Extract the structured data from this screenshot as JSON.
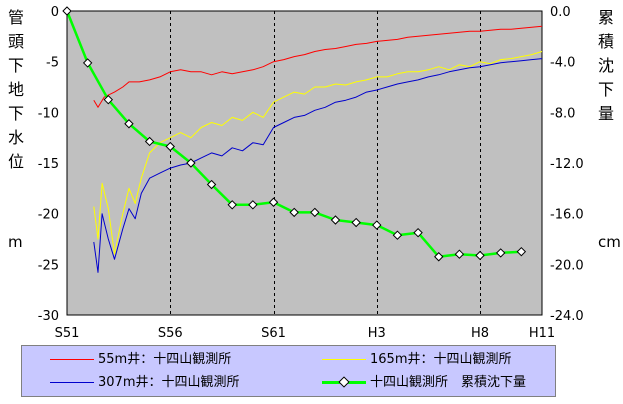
{
  "chart_data": {
    "type": "line",
    "y_left_label": "管頭下地下水位",
    "y_left_unit": "m",
    "y_right_label": "累積沈下量",
    "y_right_unit": "cm",
    "y_left_range": [
      -30,
      0
    ],
    "y_right_range": [
      -24,
      0
    ],
    "y_left_ticks": [
      "0",
      "-5",
      "-10",
      "-15",
      "-20",
      "-25",
      "-30"
    ],
    "y_right_ticks": [
      "0.0",
      "-4.0",
      "-8.0",
      "-12.0",
      "-16.0",
      "-20.0",
      "-24.0"
    ],
    "x_range": [
      1976,
      1999
    ],
    "x_ticks": [
      {
        "label": "S51",
        "year": 1976
      },
      {
        "label": "S56",
        "year": 1981
      },
      {
        "label": "S61",
        "year": 1986
      },
      {
        "label": "H3",
        "year": 1991
      },
      {
        "label": "H8",
        "year": 1996
      },
      {
        "label": "H11",
        "year": 1999
      }
    ],
    "grid": "vertical dashed at S56, S61, H3, H8",
    "series": [
      {
        "name": "55m井：十四山観測所",
        "axis": "left",
        "color": "#ff0000",
        "points": [
          [
            1977.3,
            -8.8
          ],
          [
            1977.5,
            -9.5
          ],
          [
            1977.8,
            -8.5
          ],
          [
            1978.0,
            -8.3
          ],
          [
            1978.3,
            -8.0
          ],
          [
            1978.7,
            -7.5
          ],
          [
            1979.0,
            -7.0
          ],
          [
            1979.5,
            -7.0
          ],
          [
            1980.0,
            -6.8
          ],
          [
            1980.5,
            -6.5
          ],
          [
            1981.0,
            -6.0
          ],
          [
            1981.5,
            -5.8
          ],
          [
            1982.0,
            -6.0
          ],
          [
            1982.5,
            -6.0
          ],
          [
            1983.0,
            -6.3
          ],
          [
            1983.5,
            -6.0
          ],
          [
            1984.0,
            -6.2
          ],
          [
            1984.5,
            -6.0
          ],
          [
            1985.0,
            -5.8
          ],
          [
            1985.5,
            -5.5
          ],
          [
            1986.0,
            -5.0
          ],
          [
            1986.5,
            -4.8
          ],
          [
            1987.0,
            -4.5
          ],
          [
            1987.5,
            -4.3
          ],
          [
            1988.0,
            -4.0
          ],
          [
            1988.5,
            -3.8
          ],
          [
            1989.0,
            -3.7
          ],
          [
            1989.5,
            -3.5
          ],
          [
            1990.0,
            -3.3
          ],
          [
            1990.5,
            -3.2
          ],
          [
            1991.0,
            -3.0
          ],
          [
            1991.5,
            -2.9
          ],
          [
            1992.0,
            -2.8
          ],
          [
            1992.5,
            -2.6
          ],
          [
            1993.0,
            -2.5
          ],
          [
            1993.5,
            -2.4
          ],
          [
            1994.0,
            -2.3
          ],
          [
            1994.5,
            -2.2
          ],
          [
            1995.0,
            -2.1
          ],
          [
            1995.5,
            -2.0
          ],
          [
            1996.0,
            -2.0
          ],
          [
            1996.5,
            -1.9
          ],
          [
            1997.0,
            -1.8
          ],
          [
            1997.5,
            -1.8
          ],
          [
            1998.0,
            -1.7
          ],
          [
            1998.5,
            -1.6
          ],
          [
            1999.0,
            -1.5
          ]
        ]
      },
      {
        "name": "165m井：十四山観測所",
        "axis": "left",
        "color": "#ffff00",
        "points": [
          [
            1977.3,
            -19.3
          ],
          [
            1977.5,
            -22.5
          ],
          [
            1977.7,
            -17.0
          ],
          [
            1978.0,
            -19.5
          ],
          [
            1978.3,
            -24.0
          ],
          [
            1978.7,
            -20.0
          ],
          [
            1979.0,
            -17.5
          ],
          [
            1979.3,
            -19.0
          ],
          [
            1979.6,
            -16.5
          ],
          [
            1980.0,
            -14.0
          ],
          [
            1980.5,
            -13.0
          ],
          [
            1981.0,
            -12.5
          ],
          [
            1981.5,
            -12.0
          ],
          [
            1982.0,
            -12.5
          ],
          [
            1982.5,
            -11.5
          ],
          [
            1983.0,
            -11.0
          ],
          [
            1983.5,
            -11.3
          ],
          [
            1984.0,
            -10.5
          ],
          [
            1984.5,
            -10.8
          ],
          [
            1985.0,
            -10.0
          ],
          [
            1985.5,
            -10.5
          ],
          [
            1986.0,
            -9.0
          ],
          [
            1986.5,
            -8.5
          ],
          [
            1987.0,
            -8.0
          ],
          [
            1987.5,
            -8.2
          ],
          [
            1988.0,
            -7.5
          ],
          [
            1988.5,
            -7.5
          ],
          [
            1989.0,
            -7.2
          ],
          [
            1989.5,
            -7.3
          ],
          [
            1990.0,
            -7.0
          ],
          [
            1990.5,
            -6.8
          ],
          [
            1991.0,
            -6.5
          ],
          [
            1991.5,
            -6.5
          ],
          [
            1992.0,
            -6.2
          ],
          [
            1992.5,
            -6.0
          ],
          [
            1993.0,
            -6.0
          ],
          [
            1993.5,
            -5.8
          ],
          [
            1994.0,
            -5.5
          ],
          [
            1994.5,
            -5.8
          ],
          [
            1995.0,
            -5.3
          ],
          [
            1995.5,
            -5.5
          ],
          [
            1996.0,
            -5.0
          ],
          [
            1996.5,
            -5.2
          ],
          [
            1997.0,
            -4.8
          ],
          [
            1997.5,
            -4.7
          ],
          [
            1998.0,
            -4.5
          ],
          [
            1998.5,
            -4.3
          ],
          [
            1999.0,
            -4.0
          ]
        ]
      },
      {
        "name": "307m井：十四山観測所",
        "axis": "left",
        "color": "#0000cc",
        "points": [
          [
            1977.3,
            -22.8
          ],
          [
            1977.5,
            -25.8
          ],
          [
            1977.7,
            -20.0
          ],
          [
            1978.0,
            -22.5
          ],
          [
            1978.3,
            -24.5
          ],
          [
            1978.7,
            -21.5
          ],
          [
            1979.0,
            -19.5
          ],
          [
            1979.3,
            -20.5
          ],
          [
            1979.6,
            -18.0
          ],
          [
            1980.0,
            -16.5
          ],
          [
            1980.5,
            -16.0
          ],
          [
            1981.0,
            -15.5
          ],
          [
            1981.5,
            -15.2
          ],
          [
            1982.0,
            -15.0
          ],
          [
            1982.5,
            -14.5
          ],
          [
            1983.0,
            -14.0
          ],
          [
            1983.5,
            -14.3
          ],
          [
            1984.0,
            -13.5
          ],
          [
            1984.5,
            -13.8
          ],
          [
            1985.0,
            -13.0
          ],
          [
            1985.5,
            -13.2
          ],
          [
            1986.0,
            -11.5
          ],
          [
            1986.5,
            -11.0
          ],
          [
            1987.0,
            -10.5
          ],
          [
            1987.5,
            -10.3
          ],
          [
            1988.0,
            -9.8
          ],
          [
            1988.5,
            -9.5
          ],
          [
            1989.0,
            -9.0
          ],
          [
            1989.5,
            -8.8
          ],
          [
            1990.0,
            -8.5
          ],
          [
            1990.5,
            -8.0
          ],
          [
            1991.0,
            -7.8
          ],
          [
            1991.5,
            -7.5
          ],
          [
            1992.0,
            -7.2
          ],
          [
            1992.5,
            -7.0
          ],
          [
            1993.0,
            -6.8
          ],
          [
            1993.5,
            -6.5
          ],
          [
            1994.0,
            -6.3
          ],
          [
            1994.5,
            -6.0
          ],
          [
            1995.0,
            -5.8
          ],
          [
            1995.5,
            -5.6
          ],
          [
            1996.0,
            -5.5
          ],
          [
            1996.5,
            -5.3
          ],
          [
            1997.0,
            -5.1
          ],
          [
            1997.5,
            -5.0
          ],
          [
            1998.0,
            -4.9
          ],
          [
            1998.5,
            -4.8
          ],
          [
            1999.0,
            -4.7
          ]
        ]
      },
      {
        "name": "十四山観測所　累積沈下量",
        "axis": "right",
        "color": "#00ff00",
        "marker": "diamond",
        "points": [
          [
            1976.0,
            0.0
          ],
          [
            1977.0,
            -4.1
          ],
          [
            1978.0,
            -7.0
          ],
          [
            1979.0,
            -8.9
          ],
          [
            1980.0,
            -10.3
          ],
          [
            1981.0,
            -10.7
          ],
          [
            1982.0,
            -12.0
          ],
          [
            1983.0,
            -13.7
          ],
          [
            1984.0,
            -15.3
          ],
          [
            1985.0,
            -15.3
          ],
          [
            1986.0,
            -15.1
          ],
          [
            1987.0,
            -15.9
          ],
          [
            1988.0,
            -15.9
          ],
          [
            1989.0,
            -16.5
          ],
          [
            1990.0,
            -16.7
          ],
          [
            1991.0,
            -16.9
          ],
          [
            1992.0,
            -17.7
          ],
          [
            1993.0,
            -17.5
          ],
          [
            1994.0,
            -19.4
          ],
          [
            1995.0,
            -19.2
          ],
          [
            1996.0,
            -19.3
          ],
          [
            1997.0,
            -19.1
          ],
          [
            1998.0,
            -19.0
          ]
        ]
      }
    ]
  },
  "legend": {
    "items": [
      {
        "label": "55m井：十四山観測所",
        "color": "#ff0000"
      },
      {
        "label": "165m井：十四山観測所",
        "color": "#ffff00"
      },
      {
        "label": "307m井：十四山観測所",
        "color": "#0000cc"
      },
      {
        "label": "十四山観測所　累積沈下量",
        "color": "#00ff00"
      }
    ]
  }
}
